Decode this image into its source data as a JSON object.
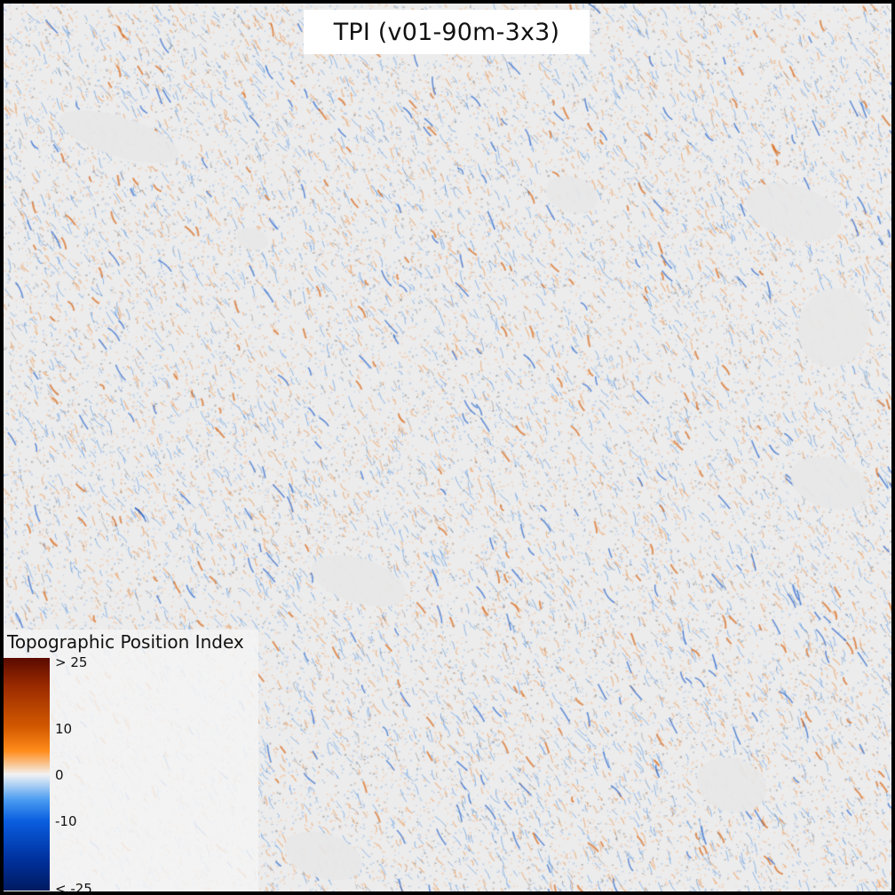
{
  "map": {
    "title": "TPI (v01-90m-3x3)",
    "colors": {
      "background": "#ececec",
      "positive_low": "#f7d2ad",
      "positive_mid": "#ff8c1a",
      "positive_high": "#5a0a00",
      "neutral": "#f2f2f2",
      "negative_low": "#c4dcf5",
      "negative_mid": "#0a5ee0",
      "negative_high": "#001a60"
    }
  },
  "legend": {
    "title": "Topographic Position Index",
    "ticks": [
      {
        "label": "> 25",
        "value": 25
      },
      {
        "label": "10",
        "value": 10
      },
      {
        "label": "0",
        "value": 0
      },
      {
        "label": "-10",
        "value": -10
      },
      {
        "label": "< -25",
        "value": -25
      }
    ],
    "range": [
      -25,
      25
    ]
  }
}
